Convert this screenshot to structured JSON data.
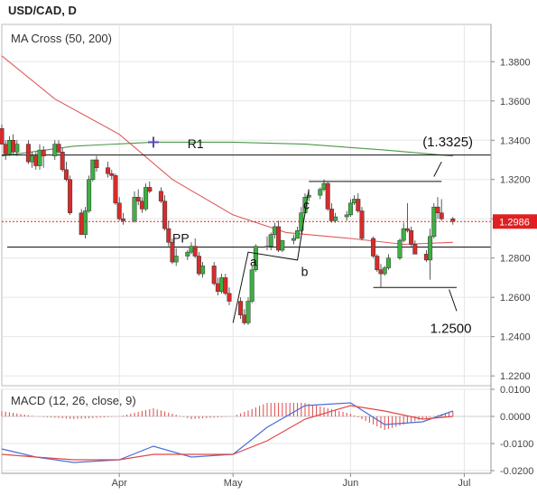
{
  "header": {
    "title": "USD/CAD, D"
  },
  "price_panel": {
    "indicator_label": "MA Cross (50, 200)",
    "current_price_label": "1.2986",
    "annotations": {
      "r1": "R1",
      "pp": "PP",
      "r1_target": "(1.3325)",
      "support_target": "1.2500",
      "wave_a": "a",
      "wave_b": "b",
      "wave_c": "c"
    }
  },
  "macd_panel": {
    "indicator_label": "MACD (12, 26, close, 9)"
  },
  "colors": {
    "bull": "#3cb043",
    "bear": "#d62c2c",
    "ma_fast": "#e05a5a",
    "ma_slow": "#4a9a4a",
    "macd_line": "#4a6fd6",
    "signal_line": "#e04848",
    "price_tag": "#e02020"
  },
  "chart_data": [
    {
      "type": "candlestick",
      "title": "USD/CAD, D",
      "x": [
        "2021-03-01",
        "2021-03-02",
        "2021-03-03",
        "2021-03-04",
        "2021-03-05",
        "2021-03-08",
        "2021-03-09",
        "2021-03-10",
        "2021-03-11",
        "2021-03-12",
        "2021-03-15",
        "2021-03-16",
        "2021-03-17",
        "2021-03-18",
        "2021-03-19",
        "2021-03-22",
        "2021-03-23",
        "2021-03-24",
        "2021-03-25",
        "2021-03-26",
        "2021-03-29",
        "2021-03-30",
        "2021-03-31",
        "2021-04-01",
        "2021-04-02",
        "2021-04-05",
        "2021-04-06",
        "2021-04-07",
        "2021-04-08",
        "2021-04-09",
        "2021-04-12",
        "2021-04-13",
        "2021-04-14",
        "2021-04-15",
        "2021-04-16",
        "2021-04-19",
        "2021-04-20",
        "2021-04-21",
        "2021-04-22",
        "2021-04-23",
        "2021-04-26",
        "2021-04-27",
        "2021-04-28",
        "2021-04-29",
        "2021-04-30",
        "2021-05-03",
        "2021-05-04",
        "2021-05-05",
        "2021-05-06",
        "2021-05-07",
        "2021-05-10",
        "2021-05-11",
        "2021-05-12",
        "2021-05-13",
        "2021-05-14",
        "2021-05-17",
        "2021-05-18",
        "2021-05-19",
        "2021-05-20",
        "2021-05-21",
        "2021-05-24",
        "2021-05-25",
        "2021-05-26",
        "2021-05-27",
        "2021-05-28",
        "2021-05-31",
        "2021-06-01",
        "2021-06-02",
        "2021-06-03",
        "2021-06-04",
        "2021-06-07",
        "2021-06-08",
        "2021-06-09",
        "2021-06-10",
        "2021-06-11",
        "2021-06-14",
        "2021-06-15",
        "2021-06-16",
        "2021-06-17",
        "2021-06-18",
        "2021-06-21",
        "2021-06-22",
        "2021-06-23",
        "2021-06-24",
        "2021-06-25",
        "2021-06-28"
      ],
      "series": [
        {
          "name": "USD/CAD",
          "open": [
            1.346,
            1.338,
            1.333,
            1.34,
            1.334,
            1.338,
            1.329,
            1.332,
            1.327,
            1.335,
            1.332,
            1.338,
            1.334,
            1.325,
            1.32,
            1.303,
            1.292,
            1.304,
            1.32,
            1.33,
            1.326,
            1.323,
            1.322,
            1.308,
            1.3,
            1.299,
            1.311,
            1.309,
            1.305,
            1.316,
            1.314,
            1.309,
            1.295,
            1.288,
            1.278,
            1.281,
            1.283,
            1.286,
            1.281,
            1.272,
            1.276,
            1.267,
            1.263,
            1.27,
            1.262,
            1.258,
            1.251,
            1.247,
            1.258,
            1.274,
            1.286,
            1.286,
            1.292,
            1.296,
            1.284,
            1.289,
            1.29,
            1.294,
            1.303,
            1.311,
            1.312,
            1.315,
            1.318,
            1.305,
            1.299,
            1.301,
            1.302,
            1.308,
            1.31,
            1.304,
            1.29,
            1.281,
            1.274,
            1.272,
            1.275,
            1.28,
            1.289,
            1.295,
            1.294,
            1.287,
            1.282,
            1.279,
            1.291,
            1.306,
            1.303,
            1.3
          ],
          "high": [
            1.348,
            1.34,
            1.342,
            1.343,
            1.34,
            1.34,
            1.334,
            1.334,
            1.338,
            1.337,
            1.34,
            1.34,
            1.336,
            1.329,
            1.322,
            1.305,
            1.306,
            1.322,
            1.33,
            1.332,
            1.329,
            1.325,
            1.323,
            1.311,
            1.303,
            1.314,
            1.315,
            1.311,
            1.318,
            1.319,
            1.316,
            1.312,
            1.299,
            1.29,
            1.285,
            1.284,
            1.288,
            1.29,
            1.283,
            1.278,
            1.278,
            1.27,
            1.272,
            1.272,
            1.265,
            1.26,
            1.254,
            1.26,
            1.276,
            1.287,
            1.291,
            1.293,
            1.298,
            1.299,
            1.289,
            1.292,
            1.296,
            1.306,
            1.313,
            1.315,
            1.316,
            1.32,
            1.319,
            1.308,
            1.303,
            1.304,
            1.31,
            1.312,
            1.313,
            1.306,
            1.291,
            1.282,
            1.277,
            1.276,
            1.282,
            1.29,
            1.298,
            1.308,
            1.296,
            1.289,
            1.284,
            1.295,
            1.308,
            1.311,
            1.31,
            1.301
          ],
          "low": [
            1.338,
            1.33,
            1.332,
            1.333,
            1.332,
            1.328,
            1.326,
            1.325,
            1.325,
            1.326,
            1.33,
            1.333,
            1.324,
            1.319,
            1.302,
            1.292,
            1.29,
            1.303,
            1.319,
            1.324,
            1.321,
            1.32,
            1.307,
            1.299,
            1.297,
            1.298,
            1.307,
            1.303,
            1.304,
            1.313,
            1.308,
            1.294,
            1.286,
            1.277,
            1.276,
            1.279,
            1.282,
            1.28,
            1.271,
            1.27,
            1.266,
            1.261,
            1.262,
            1.261,
            1.256,
            1.249,
            1.246,
            1.246,
            1.257,
            1.273,
            1.284,
            1.284,
            1.29,
            1.283,
            1.283,
            1.287,
            1.29,
            1.293,
            1.302,
            1.309,
            1.31,
            1.314,
            1.304,
            1.298,
            1.298,
            1.299,
            1.301,
            1.307,
            1.303,
            1.289,
            1.28,
            1.273,
            1.265,
            1.271,
            1.274,
            1.279,
            1.288,
            1.293,
            1.286,
            1.282,
            1.278,
            1.269,
            1.29,
            1.3,
            1.299,
            1.297
          ],
          "close": [
            1.338,
            1.333,
            1.34,
            1.334,
            1.338,
            1.329,
            1.332,
            1.327,
            1.335,
            1.332,
            1.338,
            1.334,
            1.325,
            1.32,
            1.303,
            1.292,
            1.304,
            1.32,
            1.33,
            1.326,
            1.323,
            1.322,
            1.308,
            1.3,
            1.299,
            1.311,
            1.309,
            1.305,
            1.316,
            1.314,
            1.309,
            1.295,
            1.288,
            1.278,
            1.281,
            1.283,
            1.286,
            1.281,
            1.272,
            1.276,
            1.267,
            1.263,
            1.27,
            1.262,
            1.258,
            1.251,
            1.247,
            1.258,
            1.274,
            1.286,
            1.286,
            1.292,
            1.296,
            1.284,
            1.289,
            1.29,
            1.294,
            1.303,
            1.311,
            1.312,
            1.315,
            1.318,
            1.305,
            1.299,
            1.301,
            1.302,
            1.308,
            1.31,
            1.304,
            1.29,
            1.281,
            1.274,
            1.272,
            1.275,
            1.28,
            1.289,
            1.295,
            1.294,
            1.287,
            1.282,
            1.279,
            1.291,
            1.306,
            1.303,
            1.3,
            1.2986
          ]
        },
        {
          "name": "MA 50",
          "x": [
            "2021-03-01",
            "2021-03-15",
            "2021-04-01",
            "2021-04-15",
            "2021-05-01",
            "2021-05-15",
            "2021-06-01",
            "2021-06-15",
            "2021-06-28"
          ],
          "values": [
            1.383,
            1.361,
            1.343,
            1.32,
            1.302,
            1.293,
            1.29,
            1.287,
            1.288
          ]
        },
        {
          "name": "MA 200",
          "x": [
            "2021-03-01",
            "2021-03-20",
            "2021-04-10",
            "2021-05-01",
            "2021-05-20",
            "2021-06-10",
            "2021-06-28"
          ],
          "values": [
            1.332,
            1.337,
            1.339,
            1.339,
            1.338,
            1.335,
            1.332
          ]
        }
      ],
      "x_ticks": [
        "Apr",
        "May",
        "Jun",
        "Jul"
      ],
      "y_ticks": [
        "1.2200",
        "1.2400",
        "1.2600",
        "1.2800",
        "1.3000",
        "1.3200",
        "1.3400",
        "1.3600",
        "1.3800"
      ],
      "ylim": [
        1.215,
        1.399
      ],
      "levels": {
        "R1": 1.3325,
        "PP": 1.2856,
        "support": 1.25
      },
      "last_price": 1.2986,
      "grid": true
    },
    {
      "type": "line",
      "title": "MACD (12, 26, close, 9)",
      "x": [
        "2021-03-01",
        "2021-03-10",
        "2021-03-20",
        "2021-04-01",
        "2021-04-10",
        "2021-04-20",
        "2021-05-01",
        "2021-05-10",
        "2021-05-20",
        "2021-06-01",
        "2021-06-10",
        "2021-06-20",
        "2021-06-28"
      ],
      "series": [
        {
          "name": "MACD",
          "values": [
            -0.012,
            -0.015,
            -0.017,
            -0.016,
            -0.011,
            -0.015,
            -0.014,
            -0.004,
            0.004,
            0.005,
            -0.003,
            -0.002,
            0.002
          ]
        },
        {
          "name": "Signal",
          "values": [
            -0.014,
            -0.015,
            -0.016,
            -0.016,
            -0.014,
            -0.014,
            -0.014,
            -0.009,
            -0.001,
            0.004,
            0.002,
            -0.001,
            0.0
          ]
        },
        {
          "name": "Histogram",
          "values": [
            0.002,
            0.0,
            -0.001,
            0.0,
            0.003,
            -0.001,
            0.0,
            0.005,
            0.005,
            0.001,
            -0.005,
            -0.001,
            0.002
          ]
        }
      ],
      "y_ticks": [
        "-0.0200",
        "-0.0100",
        "0.0000",
        "0.0100"
      ],
      "ylim": [
        -0.021,
        0.01
      ],
      "grid": true
    }
  ]
}
